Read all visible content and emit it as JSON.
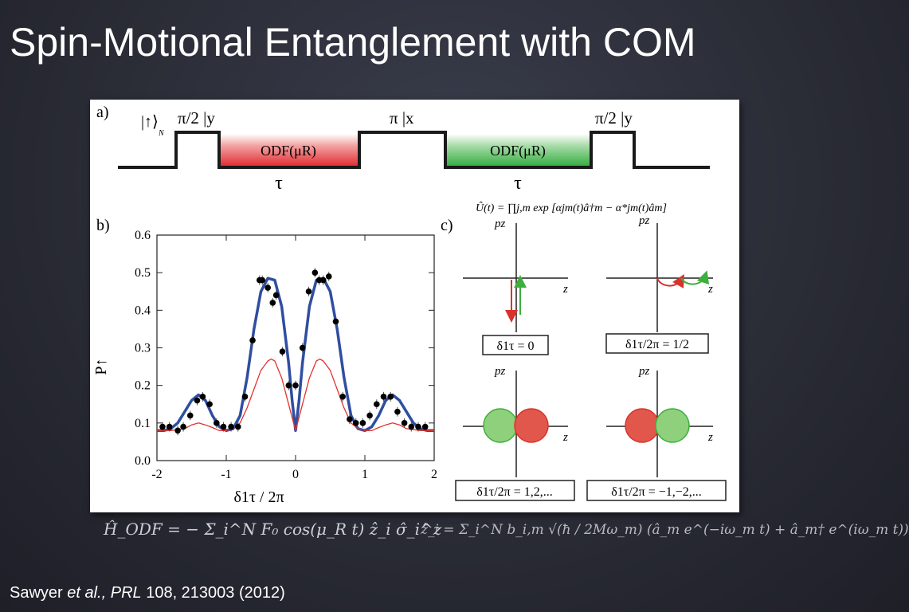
{
  "slide": {
    "title": "Spin-Motional Entanglement with COM",
    "citation": {
      "author": "Sawyer ",
      "etal": "et al.,",
      "journal": " PRL",
      "ref": " 108, 213003 (2012)"
    }
  },
  "figure": {
    "panel_a": {
      "label": "a)",
      "initial_state": "|↑⟩",
      "initial_state_sub": "N",
      "pulses": [
        "π/2 |y",
        "π |x",
        "π/2 |y"
      ],
      "odf_boxes": [
        {
          "label": "ODF(μR)",
          "color": "#e0262b"
        },
        {
          "label": "ODF(μR)",
          "color": "#2eab3b"
        }
      ],
      "durations": [
        "τ",
        "τ"
      ]
    },
    "panel_b": {
      "label": "b)",
      "ylabel": "P↑",
      "xlabel": "δ1τ / 2π"
    },
    "panel_c": {
      "label": "c)",
      "unitary": "Û(t) = ∏j,m exp [αjm(t)â†m − α*jm(t)âm]",
      "p_axis": "pz",
      "z_axis": "z",
      "cases": [
        "δ1τ = 0",
        "δ1τ/2π = 1/2",
        "δ1τ/2π = 1,2,...",
        "δ1τ/2π = −1,−2,..."
      ],
      "colors": {
        "red": "#e2574c",
        "green": "#8fd07c",
        "red_line": "#d9322c",
        "green_line": "#3caf3c"
      }
    }
  },
  "equations": {
    "hodf": "Ĥ_ODF = − Σ_i^N F₀ cos(μ_R t) ẑ_i σ̂_i^z",
    "zi": "ẑ_i = Σ_i^N b_i,m √(ħ / 2Mω_m) (â_m e^(−iω_m t) + â_m† e^(iω_m t))"
  },
  "chart_data": {
    "type": "line",
    "title": "",
    "xlabel": "δ1τ / 2π",
    "ylabel": "P↑",
    "xlim": [
      -2,
      2
    ],
    "ylim": [
      0,
      0.6
    ],
    "xticks": [
      -2,
      -1,
      0,
      1,
      2
    ],
    "yticks": [
      0.0,
      0.1,
      0.2,
      0.3,
      0.4,
      0.5,
      0.6
    ],
    "grid": false,
    "series": [
      {
        "name": "",
        "kind": "points",
        "color": "#000000",
        "x": [
          -1.92,
          -1.82,
          -1.7,
          -1.62,
          -1.52,
          -1.42,
          -1.34,
          -1.24,
          -1.14,
          -1.04,
          -0.93,
          -0.83,
          -0.73,
          -0.62,
          -0.52,
          -0.48,
          -0.4,
          -0.33,
          -0.28,
          -0.19,
          -0.1,
          0.0,
          0.1,
          0.19,
          0.28,
          0.34,
          0.4,
          0.48,
          0.58,
          0.68,
          0.78,
          0.87,
          0.97,
          1.07,
          1.17,
          1.27,
          1.37,
          1.47,
          1.57,
          1.67,
          1.77,
          1.87
        ],
        "y": [
          0.09,
          0.09,
          0.08,
          0.09,
          0.12,
          0.16,
          0.17,
          0.15,
          0.1,
          0.09,
          0.09,
          0.09,
          0.17,
          0.32,
          0.48,
          0.48,
          0.46,
          0.42,
          0.44,
          0.29,
          0.2,
          0.2,
          0.3,
          0.45,
          0.5,
          0.48,
          0.48,
          0.49,
          0.37,
          0.17,
          0.11,
          0.1,
          0.1,
          0.12,
          0.15,
          0.17,
          0.17,
          0.13,
          0.1,
          0.09,
          0.09,
          0.09
        ]
      },
      {
        "name": "",
        "kind": "curve",
        "color": "#2f4ea0",
        "x": [
          -2,
          -1.9,
          -1.8,
          -1.7,
          -1.6,
          -1.5,
          -1.4,
          -1.3,
          -1.2,
          -1.1,
          -1.0,
          -0.9,
          -0.8,
          -0.7,
          -0.6,
          -0.5,
          -0.4,
          -0.3,
          -0.2,
          -0.1,
          -0.05,
          0,
          0.05,
          0.1,
          0.2,
          0.3,
          0.4,
          0.5,
          0.6,
          0.7,
          0.8,
          0.9,
          1.0,
          1.1,
          1.2,
          1.3,
          1.4,
          1.5,
          1.6,
          1.7,
          1.8,
          1.9,
          2
        ],
        "y": [
          0.08,
          0.08,
          0.085,
          0.1,
          0.13,
          0.16,
          0.175,
          0.16,
          0.12,
          0.09,
          0.08,
          0.085,
          0.12,
          0.22,
          0.35,
          0.45,
          0.485,
          0.48,
          0.41,
          0.26,
          0.16,
          0.08,
          0.16,
          0.26,
          0.41,
          0.48,
          0.485,
          0.45,
          0.35,
          0.22,
          0.12,
          0.085,
          0.08,
          0.09,
          0.12,
          0.16,
          0.175,
          0.16,
          0.13,
          0.1,
          0.085,
          0.08,
          0.08
        ]
      },
      {
        "name": "",
        "kind": "curve",
        "color": "#e1332e",
        "x": [
          -2,
          -1.8,
          -1.6,
          -1.5,
          -1.4,
          -1.3,
          -1.2,
          -1.1,
          -1.0,
          -0.9,
          -0.8,
          -0.7,
          -0.6,
          -0.5,
          -0.4,
          -0.35,
          -0.3,
          -0.2,
          -0.1,
          0,
          0.1,
          0.2,
          0.3,
          0.35,
          0.4,
          0.5,
          0.6,
          0.7,
          0.8,
          0.9,
          1.0,
          1.1,
          1.2,
          1.3,
          1.4,
          1.5,
          1.6,
          1.8,
          2
        ],
        "y": [
          0.08,
          0.08,
          0.085,
          0.095,
          0.1,
          0.095,
          0.088,
          0.08,
          0.08,
          0.085,
          0.1,
          0.14,
          0.19,
          0.24,
          0.265,
          0.27,
          0.265,
          0.22,
          0.15,
          0.08,
          0.15,
          0.22,
          0.265,
          0.27,
          0.265,
          0.24,
          0.19,
          0.14,
          0.1,
          0.085,
          0.08,
          0.08,
          0.088,
          0.095,
          0.1,
          0.095,
          0.085,
          0.08,
          0.08
        ]
      }
    ]
  }
}
